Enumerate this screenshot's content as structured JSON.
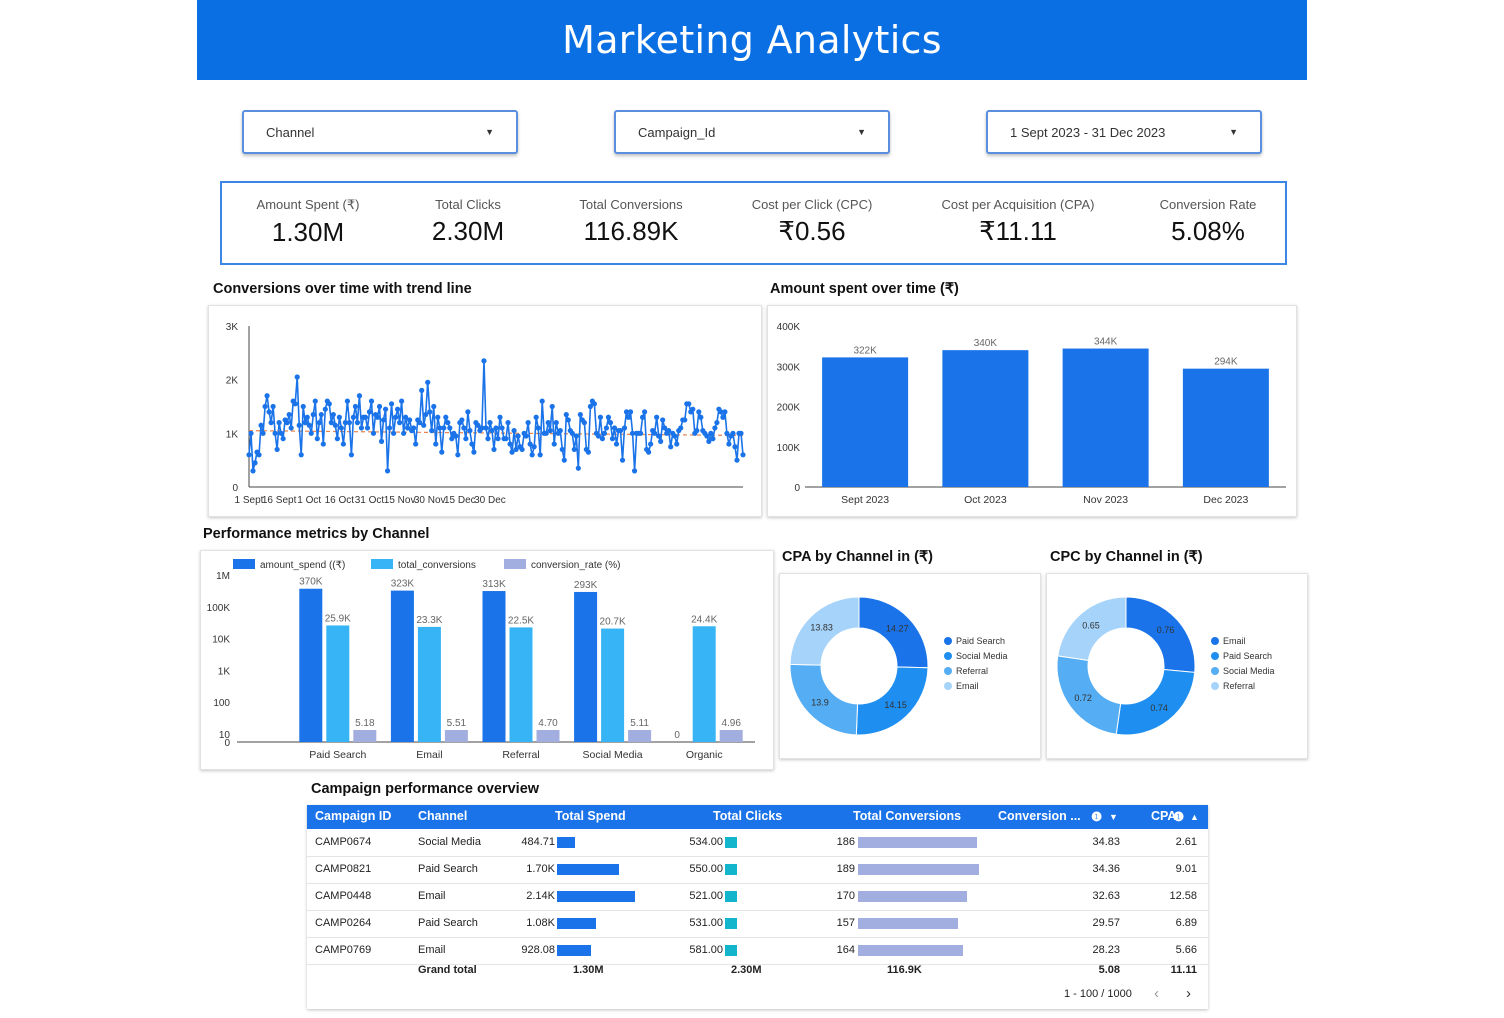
{
  "header": {
    "title": "Marketing Analytics"
  },
  "filters": {
    "channel": "Channel",
    "campaign": "Campaign_Id",
    "date": "1 Sept 2023 - 31 Dec 2023"
  },
  "kpis": [
    {
      "label": "Amount Spent (₹)",
      "value": "1.30M"
    },
    {
      "label": "Total Clicks",
      "value": "2.30M"
    },
    {
      "label": "Total Conversions",
      "value": "116.89K"
    },
    {
      "label": "Cost per Click (CPC)",
      "value": "₹0.56"
    },
    {
      "label": "Cost per Acquisition (CPA)",
      "value": "₹11.11"
    },
    {
      "label": "Conversion Rate",
      "value": "5.08%"
    }
  ],
  "section_titles": {
    "conversions": "Conversions over time with trend line",
    "spent": "Amount spent over time (₹)",
    "perf": "Performance metrics by Channel",
    "cpa": "CPA by Channel in (₹)",
    "cpc": "CPC by Channel in (₹)",
    "table": "Campaign performance overview"
  },
  "colors": {
    "brand": "#0a6fe3",
    "blue": "#1a73e8",
    "light_blue": "#36b4f5",
    "lavender": "#a3aee0",
    "teal": "#12b5cb",
    "trend": "#e8834a"
  },
  "chart_data": [
    {
      "id": "conversions_over_time",
      "type": "line",
      "ylim": [
        0,
        3000
      ],
      "y_ticks": [
        "0",
        "1K",
        "2K",
        "3K"
      ],
      "x_ticks": [
        "1 Sept",
        "16 Sept",
        "1 Oct",
        "16 Oct",
        "31 Oct",
        "15 Nov",
        "30 Nov",
        "15 Dec",
        "30 Dec"
      ],
      "x_start": "2023-09-01",
      "values": [
        600,
        1000,
        300,
        450,
        650,
        600,
        1150,
        1000,
        1500,
        1700,
        1400,
        1200,
        1500,
        1000,
        700,
        1200,
        1000,
        900,
        1250,
        1200,
        1350,
        1100,
        1600,
        1550,
        2050,
        1150,
        600,
        1500,
        1200,
        1300,
        1150,
        1000,
        1350,
        1600,
        900,
        1200,
        1350,
        800,
        1450,
        1600,
        1550,
        1200,
        1350,
        1150,
        900,
        1300,
        1100,
        800,
        1200,
        1600,
        1200,
        600,
        1300,
        1500,
        1200,
        1700,
        1100,
        1300,
        1300,
        1100,
        1400,
        1600,
        1000,
        1350,
        1300,
        1500,
        850,
        1250,
        1450,
        300,
        1100,
        1550,
        1000,
        1300,
        1450,
        1200,
        1600,
        1000,
        1300,
        1100,
        1250,
        1050,
        1100,
        800,
        1250,
        1200,
        1800,
        1150,
        1350,
        1950,
        1400,
        1050,
        1500,
        800,
        1300,
        1100,
        650,
        1100,
        1300,
        1200,
        1100,
        900,
        1000,
        950,
        600,
        1200,
        1250,
        1100,
        900,
        1400,
        1050,
        800,
        650,
        1200,
        1150,
        1050,
        1100,
        2350,
        1100,
        900,
        1200,
        1050,
        700,
        1100,
        900,
        1300,
        1100,
        900,
        900,
        1200,
        800,
        650,
        1050,
        700,
        950,
        750,
        700,
        1000,
        950,
        1200,
        800,
        600,
        750,
        1300,
        1100,
        600,
        1600,
        1000,
        1000,
        1200,
        1050,
        1500,
        800,
        1200,
        1000,
        1050,
        700,
        500,
        1350,
        1250,
        1050,
        1000,
        700,
        950,
        350,
        1350,
        1250,
        1200,
        700,
        650,
        1500,
        1600,
        1550,
        1000,
        950,
        1300,
        900,
        1000,
        1100,
        1300,
        1200,
        900,
        1100,
        800,
        1050,
        1050,
        500,
        1100,
        1400,
        1300,
        1400,
        1000,
        300,
        1000,
        1000,
        1000,
        1300,
        1400,
        700,
        650,
        800,
        1050,
        1000,
        1300,
        950,
        850,
        1250,
        1100,
        1000,
        1050,
        750,
        1000,
        950,
        800,
        1050,
        1100,
        1250,
        1250,
        1550,
        1550,
        1400,
        1450,
        1000,
        1050,
        1400,
        1300,
        1050,
        1000,
        950,
        850,
        1000,
        900,
        1100,
        1200,
        1450,
        1400,
        1300,
        1400,
        1000,
        800,
        950,
        1000,
        750,
        500,
        1000,
        1000,
        600
      ],
      "trend": [
        1050,
        960
      ]
    },
    {
      "id": "amount_spent_over_time",
      "type": "bar",
      "categories": [
        "Sept 2023",
        "Oct 2023",
        "Nov 2023",
        "Dec 2023"
      ],
      "values": [
        322,
        340,
        344,
        294
      ],
      "data_labels": [
        "322K",
        "340K",
        "344K",
        "294K"
      ],
      "ylim": [
        0,
        400
      ],
      "y_ticks": [
        "0",
        "100K",
        "200K",
        "300K",
        "400K"
      ]
    },
    {
      "id": "performance_by_channel",
      "type": "bar",
      "scale": "log",
      "categories": [
        "Paid Search",
        "Email",
        "Referral",
        "Social Media",
        "Organic"
      ],
      "series": [
        {
          "name": "amount_spend ((₹)",
          "values": [
            370000,
            323000,
            313000,
            293000,
            0
          ],
          "labels": [
            "370K",
            "323K",
            "313K",
            "293K",
            "0"
          ]
        },
        {
          "name": "total_conversions",
          "values": [
            25900,
            23300,
            22500,
            20700,
            24400
          ],
          "labels": [
            "25.9K",
            "23.3K",
            "22.5K",
            "20.7K",
            "24.4K"
          ]
        },
        {
          "name": "conversion_rate (%)",
          "values": [
            5.18,
            5.51,
            4.7,
            5.11,
            4.96
          ],
          "labels": [
            "5.18",
            "5.51",
            "4.70",
            "5.11",
            "4.96"
          ]
        }
      ],
      "y_ticks": [
        "0",
        "10",
        "100",
        "1K",
        "10K",
        "100K",
        "1M"
      ]
    },
    {
      "id": "cpa_by_channel",
      "type": "pie",
      "labels": [
        "Paid Search",
        "Social Media",
        "Referral",
        "Email"
      ],
      "values": [
        14.27,
        14.15,
        13.9,
        13.83
      ],
      "slice_labels": [
        "14.27",
        "14.15",
        "13.9",
        "13.83"
      ]
    },
    {
      "id": "cpc_by_channel",
      "type": "pie",
      "labels": [
        "Email",
        "Paid Search",
        "Social Media",
        "Referral"
      ],
      "values": [
        0.76,
        0.74,
        0.72,
        0.65
      ],
      "slice_labels": [
        "0.76",
        "0.74",
        "0.72",
        "0.65"
      ]
    },
    {
      "id": "campaign_table",
      "type": "table",
      "columns": [
        "Campaign ID",
        "Channel",
        "Total Spend",
        "Total Clicks",
        "Total Conversions",
        "Conversion ...",
        "CPA"
      ],
      "rows": [
        {
          "id": "CAMP0674",
          "channel": "Social Media",
          "spend": "484.71",
          "spend_v": 484.71,
          "clicks": "534.00",
          "clicks_v": 534,
          "conv": "186",
          "conv_v": 186,
          "rate": "34.83",
          "cpa": "2.61"
        },
        {
          "id": "CAMP0821",
          "channel": "Paid Search",
          "spend": "1.70K",
          "spend_v": 1700,
          "clicks": "550.00",
          "clicks_v": 550,
          "conv": "189",
          "conv_v": 189,
          "rate": "34.36",
          "cpa": "9.01"
        },
        {
          "id": "CAMP0448",
          "channel": "Email",
          "spend": "2.14K",
          "spend_v": 2140,
          "clicks": "521.00",
          "clicks_v": 521,
          "conv": "170",
          "conv_v": 170,
          "rate": "32.63",
          "cpa": "12.58"
        },
        {
          "id": "CAMP0264",
          "channel": "Paid Search",
          "spend": "1.08K",
          "spend_v": 1080,
          "clicks": "531.00",
          "clicks_v": 531,
          "conv": "157",
          "conv_v": 157,
          "rate": "29.57",
          "cpa": "6.89"
        },
        {
          "id": "CAMP0769",
          "channel": "Email",
          "spend": "928.08",
          "spend_v": 928.08,
          "clicks": "581.00",
          "clicks_v": 581,
          "conv": "164",
          "conv_v": 164,
          "rate": "28.23",
          "cpa": "5.66"
        }
      ],
      "grand_total": {
        "label": "Grand total",
        "spend": "1.30M",
        "clicks": "2.30M",
        "conv": "116.9K",
        "rate": "5.08",
        "cpa": "11.11"
      },
      "pagination": "1 - 100 / 1000"
    }
  ]
}
